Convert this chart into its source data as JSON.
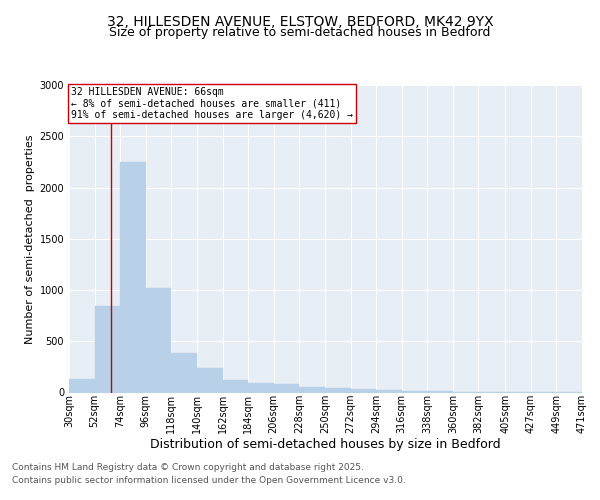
{
  "title_line1": "32, HILLESDEN AVENUE, ELSTOW, BEDFORD, MK42 9YX",
  "title_line2": "Size of property relative to semi-detached houses in Bedford",
  "xlabel": "Distribution of semi-detached houses by size in Bedford",
  "ylabel": "Number of semi-detached  properties",
  "footer_line1": "Contains HM Land Registry data © Crown copyright and database right 2025.",
  "footer_line2": "Contains public sector information licensed under the Open Government Licence v3.0.",
  "annotation_title": "32 HILLESDEN AVENUE: 66sqm",
  "annotation_line1": "← 8% of semi-detached houses are smaller (411)",
  "annotation_line2": "91% of semi-detached houses are larger (4,620) →",
  "property_size_sqm": 66,
  "bin_edges": [
    30,
    52,
    74,
    96,
    118,
    140,
    162,
    184,
    206,
    228,
    250,
    272,
    294,
    316,
    338,
    360,
    382,
    405,
    427,
    449,
    471
  ],
  "bar_values": [
    130,
    840,
    2250,
    1020,
    390,
    240,
    120,
    95,
    80,
    55,
    45,
    30,
    20,
    15,
    12,
    8,
    5,
    3,
    2,
    1
  ],
  "bar_color": "#b8d0e8",
  "bar_edgecolor": "#b8d0e8",
  "vline_color": "#cc0000",
  "annotation_box_edgecolor": "#cc0000",
  "annotation_box_facecolor": "#ffffff",
  "background_color": "#e8eef5",
  "ylim": [
    0,
    3000
  ],
  "yticks": [
    0,
    500,
    1000,
    1500,
    2000,
    2500,
    3000
  ],
  "grid_color": "#ffffff",
  "title_fontsize": 10,
  "subtitle_fontsize": 9,
  "xlabel_fontsize": 9,
  "ylabel_fontsize": 8,
  "tick_fontsize": 7,
  "annotation_fontsize": 7,
  "footer_fontsize": 6.5
}
